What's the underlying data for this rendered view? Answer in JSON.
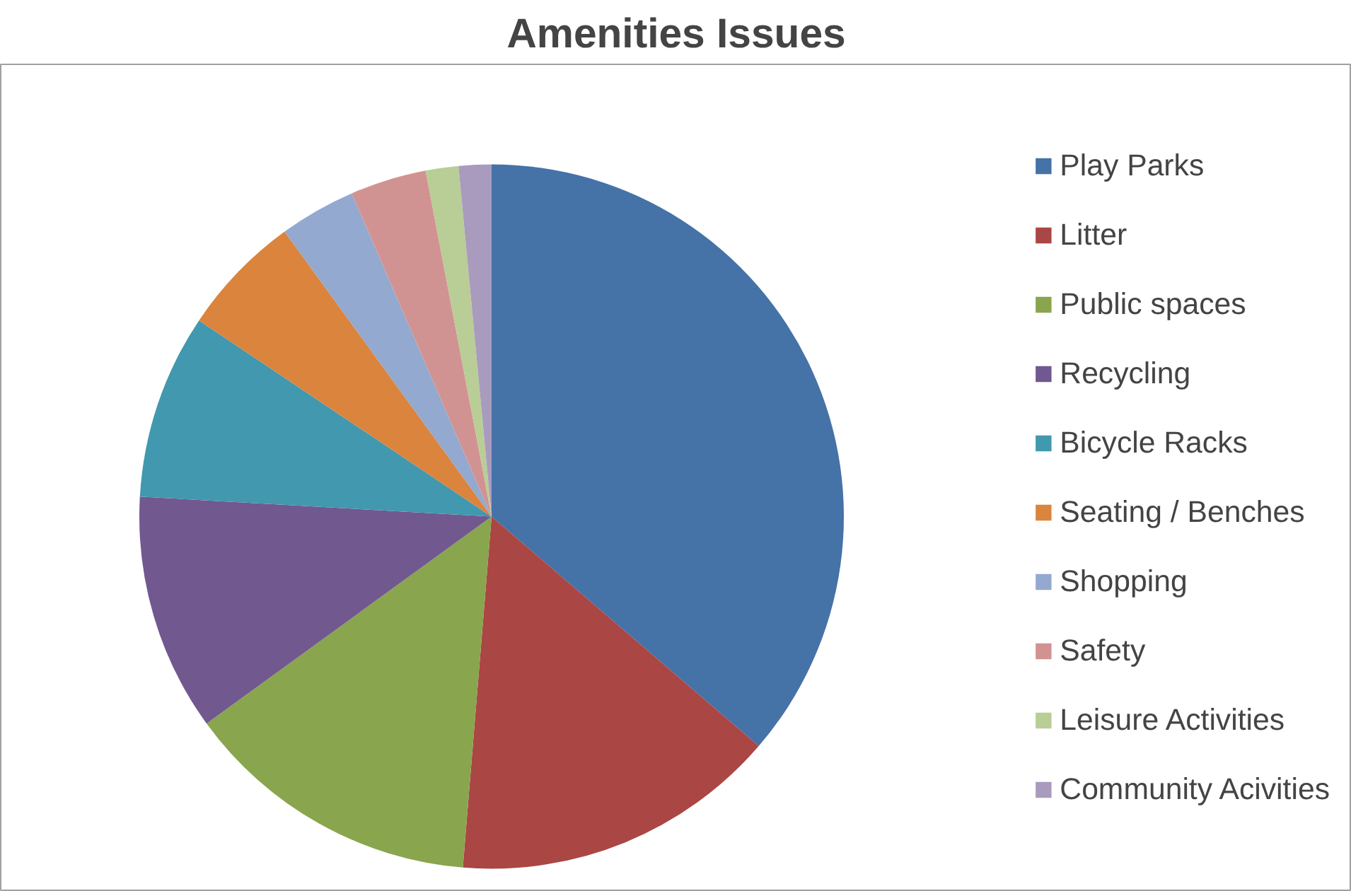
{
  "chart_data": {
    "type": "pie",
    "title": "Amenities Issues",
    "categories": [
      "Play Parks",
      "Litter",
      "Public spaces",
      "Recycling",
      "Bicycle Racks",
      "Seating / Benches",
      "Shopping",
      "Safety",
      "Leisure Activities",
      "Community Acivities"
    ],
    "values": [
      36.3,
      15.0,
      13.7,
      10.9,
      8.5,
      5.6,
      3.5,
      3.5,
      1.5,
      1.5
    ],
    "colors": [
      "#4572a7",
      "#aa4643",
      "#89a54e",
      "#71588f",
      "#4198af",
      "#db843d",
      "#93a9cf",
      "#d19392",
      "#b9cd96",
      "#a99bbd"
    ],
    "legend": "right"
  }
}
